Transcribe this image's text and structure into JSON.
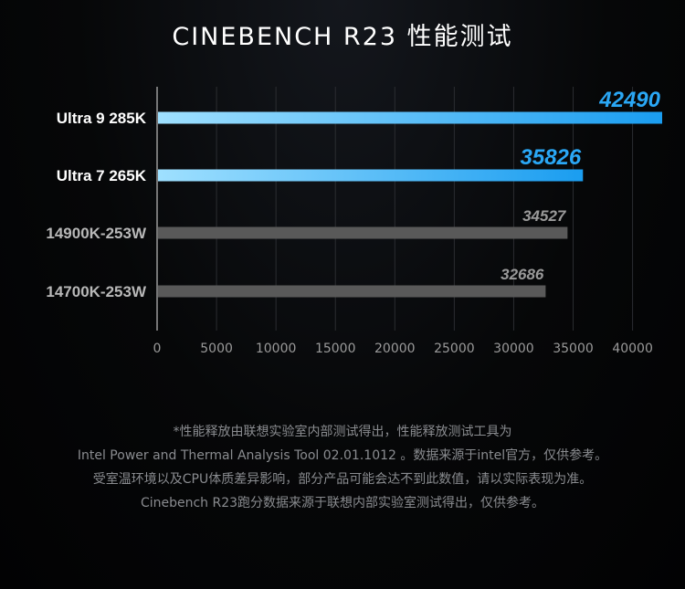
{
  "title": "CINEBENCH R23 性能测试",
  "chart_data": {
    "type": "bar",
    "orientation": "horizontal",
    "title": "CINEBENCH R23 性能测试",
    "categories": [
      "Ultra 9 285K",
      "Ultra 7 265K",
      "14900K-253W",
      "14700K-253W"
    ],
    "values": [
      42490,
      35826,
      34527,
      32686
    ],
    "value_labels": [
      "42490",
      "35826",
      "34527",
      "32686"
    ],
    "highlight": [
      true,
      true,
      false,
      false
    ],
    "xlim": [
      0,
      42490
    ],
    "x_ticks": [
      0,
      5000,
      10000,
      15000,
      20000,
      25000,
      30000,
      35000,
      40000
    ],
    "x_tick_labels": [
      "0",
      "5000",
      "10000",
      "15000",
      "20000",
      "25000",
      "30000",
      "35000",
      "40000"
    ],
    "grid": true,
    "colors": {
      "highlight_start": "#9fe0ff",
      "highlight_end": "#1a9df0",
      "highlight_label": "#2aa7f5",
      "other_bar": "#595959",
      "other_label": "#9a9a9a",
      "grid": "#2b2d31",
      "axis": "#9a9a9a"
    }
  },
  "footnote": {
    "line1": "*性能释放由联想实验室内部测试得出，性能释放测试工具为",
    "line2": "Intel Power and Thermal Analysis Tool 02.01.1012 。数据来源于intel官方，仅供参考。",
    "line3": "受室温环境以及CPU体质差异影响，部分产品可能会达不到此数值，请以实际表现为准。",
    "line4": "Cinebench R23跑分数据来源于联想内部实验室测试得出，仅供参考。"
  }
}
